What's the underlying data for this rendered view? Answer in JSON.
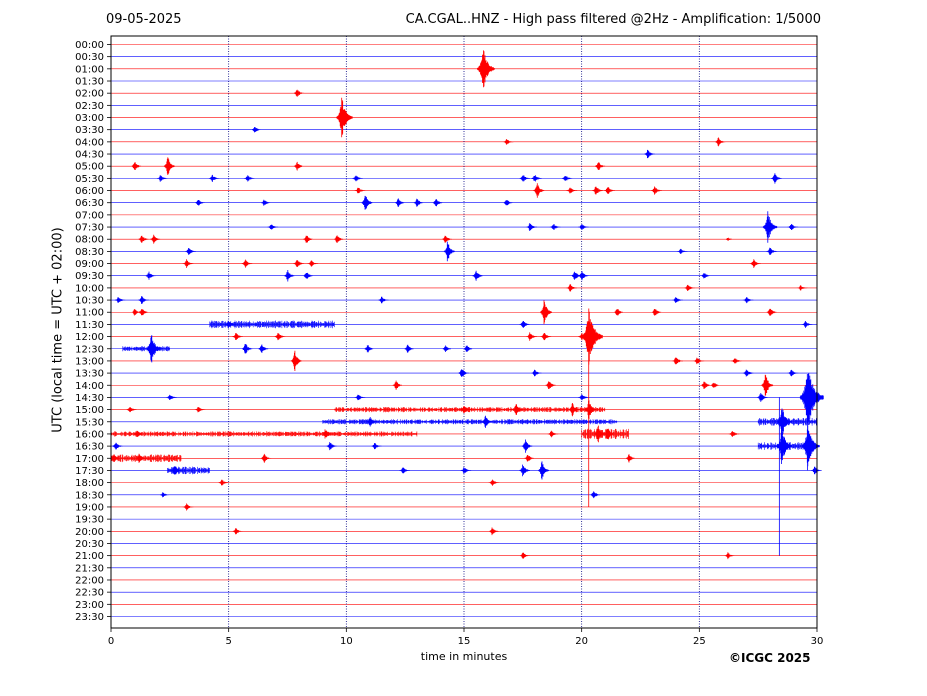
{
  "header": {
    "date": "09-05-2025",
    "title": "CA.CGAL..HNZ - High pass filtered @2Hz - Amplification: 1/5000"
  },
  "footer": {
    "copyright": "©ICGC 2025"
  },
  "colors": {
    "odd_trace": "#ff0000",
    "even_trace": "#0000ff",
    "grid": "#000080"
  },
  "chart_data": {
    "type": "line",
    "title": "CA.CGAL..HNZ - High pass filtered @2Hz - Amplification: 1/5000",
    "xlabel": "time in minutes",
    "ylabel": "UTC (local time = UTC + 02:00)",
    "xlim": [
      0,
      30
    ],
    "xticks": [
      0,
      5,
      10,
      15,
      20,
      25,
      30
    ],
    "grid": "vertical dotted at 5-minute intervals",
    "rows": [
      "00:00",
      "00:30",
      "01:00",
      "01:30",
      "02:00",
      "02:30",
      "03:00",
      "03:30",
      "04:00",
      "04:30",
      "05:00",
      "05:30",
      "06:00",
      "06:30",
      "07:00",
      "07:30",
      "08:00",
      "08:30",
      "09:00",
      "09:30",
      "10:00",
      "10:30",
      "11:00",
      "11:30",
      "12:00",
      "12:30",
      "13:00",
      "13:30",
      "14:00",
      "14:30",
      "15:00",
      "15:30",
      "16:00",
      "16:30",
      "17:00",
      "17:30",
      "18:00",
      "18:30",
      "19:00",
      "19:30",
      "20:00",
      "20:30",
      "21:00",
      "21:30",
      "22:00",
      "22:30",
      "23:00",
      "23:30"
    ],
    "trace_colors": [
      "red",
      "blue"
    ],
    "events": [
      {
        "row": 2,
        "t": 15.8,
        "amp": 24
      },
      {
        "row": 4,
        "t": 7.9,
        "amp": 5
      },
      {
        "row": 6,
        "t": 9.8,
        "amp": 22
      },
      {
        "row": 7,
        "t": 6.1,
        "amp": 4
      },
      {
        "row": 8,
        "t": 16.8,
        "amp": 4
      },
      {
        "row": 8,
        "t": 25.8,
        "amp": 5
      },
      {
        "row": 9,
        "t": 22.8,
        "amp": 5
      },
      {
        "row": 10,
        "t": 1.0,
        "amp": 6
      },
      {
        "row": 10,
        "t": 2.4,
        "amp": 12
      },
      {
        "row": 10,
        "t": 7.9,
        "amp": 5
      },
      {
        "row": 10,
        "t": 20.7,
        "amp": 6
      },
      {
        "row": 11,
        "t": 2.1,
        "amp": 4
      },
      {
        "row": 11,
        "t": 4.3,
        "amp": 4
      },
      {
        "row": 11,
        "t": 5.8,
        "amp": 4
      },
      {
        "row": 11,
        "t": 10.4,
        "amp": 4
      },
      {
        "row": 11,
        "t": 17.5,
        "amp": 5
      },
      {
        "row": 11,
        "t": 18.0,
        "amp": 5
      },
      {
        "row": 11,
        "t": 19.3,
        "amp": 4
      },
      {
        "row": 11,
        "t": 28.2,
        "amp": 6
      },
      {
        "row": 12,
        "t": 10.5,
        "amp": 4
      },
      {
        "row": 12,
        "t": 18.1,
        "amp": 9
      },
      {
        "row": 12,
        "t": 19.5,
        "amp": 4
      },
      {
        "row": 12,
        "t": 20.6,
        "amp": 6
      },
      {
        "row": 12,
        "t": 21.1,
        "amp": 5
      },
      {
        "row": 12,
        "t": 23.1,
        "amp": 5
      },
      {
        "row": 13,
        "t": 3.7,
        "amp": 4
      },
      {
        "row": 13,
        "t": 6.5,
        "amp": 4
      },
      {
        "row": 13,
        "t": 10.8,
        "amp": 12
      },
      {
        "row": 13,
        "t": 12.2,
        "amp": 5
      },
      {
        "row": 13,
        "t": 13.0,
        "amp": 5
      },
      {
        "row": 13,
        "t": 13.8,
        "amp": 5
      },
      {
        "row": 13,
        "t": 16.8,
        "amp": 4
      },
      {
        "row": 15,
        "t": 6.8,
        "amp": 4
      },
      {
        "row": 15,
        "t": 17.8,
        "amp": 5
      },
      {
        "row": 15,
        "t": 18.8,
        "amp": 4
      },
      {
        "row": 15,
        "t": 20.0,
        "amp": 4
      },
      {
        "row": 15,
        "t": 27.9,
        "amp": 18
      },
      {
        "row": 15,
        "t": 28.9,
        "amp": 4
      },
      {
        "row": 16,
        "t": 1.3,
        "amp": 5
      },
      {
        "row": 16,
        "t": 1.8,
        "amp": 5
      },
      {
        "row": 16,
        "t": 8.3,
        "amp": 5
      },
      {
        "row": 16,
        "t": 9.6,
        "amp": 5
      },
      {
        "row": 16,
        "t": 14.2,
        "amp": 5
      },
      {
        "row": 16,
        "t": 26.2,
        "amp": 2
      },
      {
        "row": 17,
        "t": 3.3,
        "amp": 5
      },
      {
        "row": 17,
        "t": 14.3,
        "amp": 12
      },
      {
        "row": 17,
        "t": 24.2,
        "amp": 3
      },
      {
        "row": 17,
        "t": 28.0,
        "amp": 5
      },
      {
        "row": 18,
        "t": 3.2,
        "amp": 5
      },
      {
        "row": 18,
        "t": 5.7,
        "amp": 5
      },
      {
        "row": 18,
        "t": 7.9,
        "amp": 5
      },
      {
        "row": 18,
        "t": 8.5,
        "amp": 4
      },
      {
        "row": 18,
        "t": 27.3,
        "amp": 5
      },
      {
        "row": 19,
        "t": 1.6,
        "amp": 5
      },
      {
        "row": 19,
        "t": 7.5,
        "amp": 7
      },
      {
        "row": 19,
        "t": 8.3,
        "amp": 5
      },
      {
        "row": 19,
        "t": 15.5,
        "amp": 7
      },
      {
        "row": 19,
        "t": 19.7,
        "amp": 6
      },
      {
        "row": 19,
        "t": 20.0,
        "amp": 6
      },
      {
        "row": 19,
        "t": 25.2,
        "amp": 4
      },
      {
        "row": 20,
        "t": 19.5,
        "amp": 5
      },
      {
        "row": 20,
        "t": 24.5,
        "amp": 4
      },
      {
        "row": 20,
        "t": 29.3,
        "amp": 3
      },
      {
        "row": 21,
        "t": 0.3,
        "amp": 4
      },
      {
        "row": 21,
        "t": 1.3,
        "amp": 5
      },
      {
        "row": 21,
        "t": 11.5,
        "amp": 4
      },
      {
        "row": 21,
        "t": 24.0,
        "amp": 4
      },
      {
        "row": 21,
        "t": 27.0,
        "amp": 4
      },
      {
        "row": 22,
        "t": 1.0,
        "amp": 4
      },
      {
        "row": 22,
        "t": 1.3,
        "amp": 5
      },
      {
        "row": 22,
        "t": 18.4,
        "amp": 14
      },
      {
        "row": 22,
        "t": 21.5,
        "amp": 5
      },
      {
        "row": 22,
        "t": 23.1,
        "amp": 5
      },
      {
        "row": 22,
        "t": 28.0,
        "amp": 6
      },
      {
        "row": 23,
        "t": 5.0,
        "amp": 4
      },
      {
        "row": 23,
        "t": 17.5,
        "amp": 5
      },
      {
        "row": 23,
        "t": 29.5,
        "amp": 4
      },
      {
        "row": 24,
        "t": 5.3,
        "amp": 5
      },
      {
        "row": 24,
        "t": 7.1,
        "amp": 5
      },
      {
        "row": 24,
        "t": 17.8,
        "amp": 5
      },
      {
        "row": 24,
        "t": 18.4,
        "amp": 5
      },
      {
        "row": 24,
        "t": 20.0,
        "amp": 5
      },
      {
        "row": 24,
        "t": 20.3,
        "amp": 30
      },
      {
        "row": 25,
        "t": 1.7,
        "amp": 18
      },
      {
        "row": 25,
        "t": 5.7,
        "amp": 7
      },
      {
        "row": 25,
        "t": 6.4,
        "amp": 6
      },
      {
        "row": 25,
        "t": 10.9,
        "amp": 5
      },
      {
        "row": 25,
        "t": 12.6,
        "amp": 5
      },
      {
        "row": 25,
        "t": 14.2,
        "amp": 4
      },
      {
        "row": 25,
        "t": 15.1,
        "amp": 5
      },
      {
        "row": 26,
        "t": 7.8,
        "amp": 12
      },
      {
        "row": 26,
        "t": 24.0,
        "amp": 6
      },
      {
        "row": 26,
        "t": 24.9,
        "amp": 4
      },
      {
        "row": 26,
        "t": 26.5,
        "amp": 4
      },
      {
        "row": 27,
        "t": 14.9,
        "amp": 6
      },
      {
        "row": 27,
        "t": 18.0,
        "amp": 4
      },
      {
        "row": 27,
        "t": 27.0,
        "amp": 5
      },
      {
        "row": 27,
        "t": 28.9,
        "amp": 4
      },
      {
        "row": 28,
        "t": 12.1,
        "amp": 6
      },
      {
        "row": 28,
        "t": 18.6,
        "amp": 6
      },
      {
        "row": 28,
        "t": 25.2,
        "amp": 5
      },
      {
        "row": 28,
        "t": 25.6,
        "amp": 4
      },
      {
        "row": 28,
        "t": 27.8,
        "amp": 14
      },
      {
        "row": 29,
        "t": 2.5,
        "amp": 4
      },
      {
        "row": 29,
        "t": 10.5,
        "amp": 4
      },
      {
        "row": 29,
        "t": 20.0,
        "amp": 4
      },
      {
        "row": 29,
        "t": 27.6,
        "amp": 6
      },
      {
        "row": 29,
        "t": 29.6,
        "amp": 35
      },
      {
        "row": 30,
        "t": 0.8,
        "amp": 4
      },
      {
        "row": 30,
        "t": 3.7,
        "amp": 4
      },
      {
        "row": 30,
        "t": 15.0,
        "amp": 6
      },
      {
        "row": 30,
        "t": 17.2,
        "amp": 8
      },
      {
        "row": 30,
        "t": 19.6,
        "amp": 8
      },
      {
        "row": 30,
        "t": 20.3,
        "amp": 12
      },
      {
        "row": 31,
        "t": 11.0,
        "amp": 7
      },
      {
        "row": 31,
        "t": 15.9,
        "amp": 8
      },
      {
        "row": 31,
        "t": 28.5,
        "amp": 18
      },
      {
        "row": 32,
        "t": 1.1,
        "amp": 5
      },
      {
        "row": 32,
        "t": 9.1,
        "amp": 6
      },
      {
        "row": 32,
        "t": 18.7,
        "amp": 4
      },
      {
        "row": 32,
        "t": 20.7,
        "amp": 10
      },
      {
        "row": 32,
        "t": 21.1,
        "amp": 8
      },
      {
        "row": 32,
        "t": 26.4,
        "amp": 4
      },
      {
        "row": 33,
        "t": 0.2,
        "amp": 5
      },
      {
        "row": 33,
        "t": 9.3,
        "amp": 5
      },
      {
        "row": 33,
        "t": 11.2,
        "amp": 4
      },
      {
        "row": 33,
        "t": 17.6,
        "amp": 8
      },
      {
        "row": 33,
        "t": 28.5,
        "amp": 20
      },
      {
        "row": 33,
        "t": 29.6,
        "amp": 24
      },
      {
        "row": 34,
        "t": 0.1,
        "amp": 5
      },
      {
        "row": 34,
        "t": 1.2,
        "amp": 6
      },
      {
        "row": 34,
        "t": 6.5,
        "amp": 5
      },
      {
        "row": 34,
        "t": 17.7,
        "amp": 5
      },
      {
        "row": 34,
        "t": 22.0,
        "amp": 5
      },
      {
        "row": 35,
        "t": 2.7,
        "amp": 7
      },
      {
        "row": 35,
        "t": 12.4,
        "amp": 4
      },
      {
        "row": 35,
        "t": 15.0,
        "amp": 4
      },
      {
        "row": 35,
        "t": 17.5,
        "amp": 7
      },
      {
        "row": 35,
        "t": 18.3,
        "amp": 12
      },
      {
        "row": 35,
        "t": 29.9,
        "amp": 5
      },
      {
        "row": 36,
        "t": 4.7,
        "amp": 4
      },
      {
        "row": 36,
        "t": 16.2,
        "amp": 4
      },
      {
        "row": 37,
        "t": 2.2,
        "amp": 3
      },
      {
        "row": 37,
        "t": 20.5,
        "amp": 5
      },
      {
        "row": 38,
        "t": 3.2,
        "amp": 4
      },
      {
        "row": 40,
        "t": 5.3,
        "amp": 4
      },
      {
        "row": 40,
        "t": 16.2,
        "amp": 5
      },
      {
        "row": 42,
        "t": 17.5,
        "amp": 4
      },
      {
        "row": 42,
        "t": 26.2,
        "amp": 4
      }
    ],
    "noise_bursts": [
      {
        "row": 23,
        "t0": 4.2,
        "t1": 9.5,
        "amp": 3
      },
      {
        "row": 25,
        "t0": 0.5,
        "t1": 2.5,
        "amp": 2
      },
      {
        "row": 30,
        "t0": 9.5,
        "t1": 21.0,
        "amp": 2
      },
      {
        "row": 31,
        "t0": 9.0,
        "t1": 21.5,
        "amp": 2
      },
      {
        "row": 31,
        "t0": 27.5,
        "t1": 30.0,
        "amp": 3
      },
      {
        "row": 32,
        "t0": 0.0,
        "t1": 13.0,
        "amp": 2
      },
      {
        "row": 32,
        "t0": 20.0,
        "t1": 22.0,
        "amp": 4
      },
      {
        "row": 33,
        "t0": 27.5,
        "t1": 30.0,
        "amp": 3
      },
      {
        "row": 34,
        "t0": 0.0,
        "t1": 3.0,
        "amp": 3
      },
      {
        "row": 35,
        "t0": 2.4,
        "t1": 4.2,
        "amp": 3
      }
    ],
    "long_spikes": [
      {
        "t": 20.3,
        "y_from_row": 24,
        "y_to_row": 38
      },
      {
        "t": 28.4,
        "y_from_row": 29,
        "y_to_row": 42
      },
      {
        "t": 29.6,
        "y_from_row": 29,
        "y_to_row": 35
      }
    ]
  }
}
